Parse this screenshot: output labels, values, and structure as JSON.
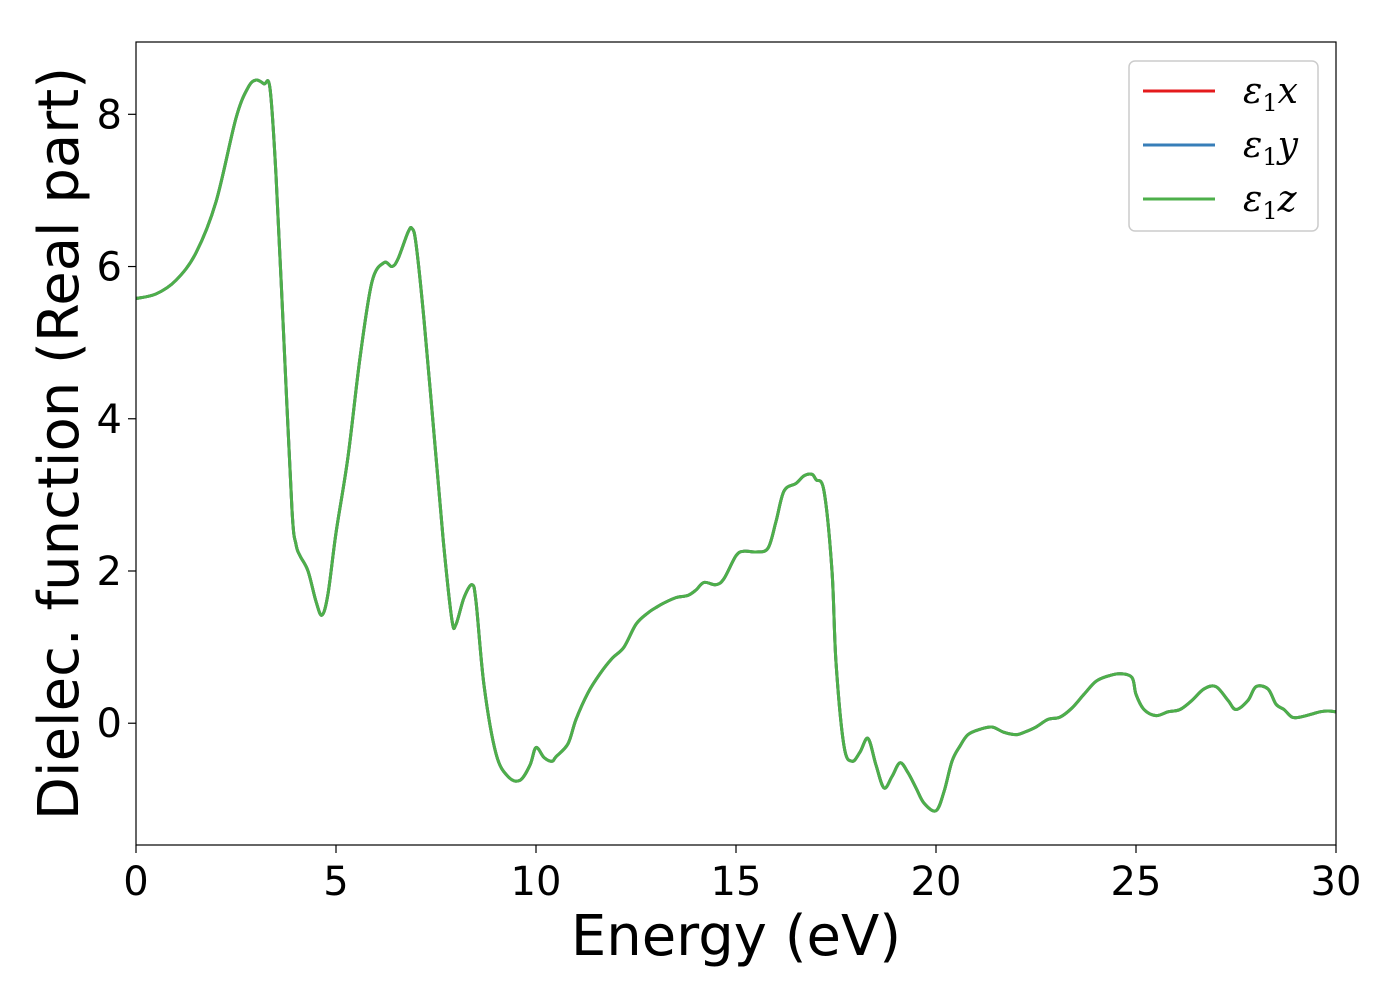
{
  "chart_data": {
    "type": "line",
    "title": "",
    "xlabel": "Energy (eV)",
    "ylabel": "Dielec. function (Real part)",
    "xlim": [
      0,
      30
    ],
    "ylim": [
      -1.6,
      8.95
    ],
    "xticks": [
      0,
      5,
      10,
      15,
      20,
      25,
      30
    ],
    "yticks": [
      0,
      2,
      4,
      6,
      8
    ],
    "grid": false,
    "legend_position": "top-right",
    "series": [
      {
        "name": "ε1x",
        "label_main": "ε",
        "label_sub": "1",
        "label_tail": "x",
        "color": "#e41a1c",
        "x": [
          0,
          0.5,
          1.0,
          1.5,
          2.0,
          2.5,
          2.8,
          3.0,
          3.2,
          3.35,
          3.5,
          3.7,
          3.9,
          4.0,
          4.1,
          4.3,
          4.5,
          4.65,
          4.8,
          5.0,
          5.3,
          5.6,
          5.9,
          6.2,
          6.4,
          6.55,
          6.8,
          6.9,
          7.0,
          7.2,
          7.5,
          7.7,
          7.9,
          8.0,
          8.2,
          8.4,
          8.5,
          8.7,
          9.0,
          9.3,
          9.6,
          9.85,
          10.0,
          10.2,
          10.4,
          10.5,
          10.8,
          11.0,
          11.3,
          11.6,
          11.9,
          12.2,
          12.5,
          12.8,
          13.0,
          13.2,
          13.5,
          13.8,
          14.0,
          14.2,
          14.5,
          14.7,
          15.0,
          15.2,
          15.5,
          15.8,
          16.0,
          16.2,
          16.5,
          16.7,
          16.9,
          17.0,
          17.2,
          17.4,
          17.5,
          17.7,
          17.9,
          18.1,
          18.3,
          18.5,
          18.7,
          18.9,
          19.1,
          19.3,
          19.5,
          19.7,
          20.0,
          20.2,
          20.4,
          20.6,
          20.8,
          21.1,
          21.4,
          21.7,
          22.0,
          22.2,
          22.5,
          22.8,
          23.1,
          23.4,
          23.7,
          24.0,
          24.3,
          24.6,
          24.9,
          25.0,
          25.2,
          25.5,
          25.8,
          26.1,
          26.4,
          26.7,
          27.0,
          27.3,
          27.5,
          27.8,
          28.0,
          28.3,
          28.5,
          28.7,
          28.9,
          29.1,
          29.4,
          29.6,
          29.8,
          30.0
        ],
        "values": [
          5.58,
          5.64,
          5.82,
          6.18,
          6.85,
          7.95,
          8.35,
          8.45,
          8.4,
          8.34,
          7.2,
          5.0,
          2.8,
          2.35,
          2.2,
          2.0,
          1.6,
          1.42,
          1.7,
          2.5,
          3.5,
          4.8,
          5.8,
          6.05,
          6.0,
          6.1,
          6.45,
          6.5,
          6.3,
          5.3,
          3.5,
          2.3,
          1.35,
          1.3,
          1.65,
          1.82,
          1.6,
          0.5,
          -0.4,
          -0.7,
          -0.75,
          -0.55,
          -0.32,
          -0.45,
          -0.5,
          -0.44,
          -0.27,
          0.05,
          0.4,
          0.65,
          0.85,
          1.0,
          1.3,
          1.45,
          1.52,
          1.58,
          1.65,
          1.68,
          1.75,
          1.85,
          1.82,
          1.9,
          2.2,
          2.26,
          2.25,
          2.3,
          2.65,
          3.05,
          3.15,
          3.25,
          3.27,
          3.2,
          3.05,
          2.0,
          0.8,
          -0.3,
          -0.5,
          -0.38,
          -0.2,
          -0.55,
          -0.85,
          -0.7,
          -0.52,
          -0.65,
          -0.85,
          -1.05,
          -1.15,
          -0.9,
          -0.5,
          -0.3,
          -0.15,
          -0.08,
          -0.05,
          -0.12,
          -0.15,
          -0.12,
          -0.05,
          0.05,
          0.08,
          0.2,
          0.38,
          0.55,
          0.62,
          0.65,
          0.6,
          0.38,
          0.18,
          0.1,
          0.15,
          0.18,
          0.3,
          0.45,
          0.48,
          0.3,
          0.18,
          0.3,
          0.48,
          0.45,
          0.25,
          0.18,
          0.08,
          0.08,
          0.12,
          0.15,
          0.16,
          0.15
        ]
      },
      {
        "name": "ε1y",
        "label_main": "ε",
        "label_sub": "1",
        "label_tail": "y",
        "color": "#377eb8",
        "same_as": "ε1x"
      },
      {
        "name": "ε1z",
        "label_main": "ε",
        "label_sub": "1",
        "label_tail": "z",
        "color": "#4daf4a",
        "same_as": "ε1x"
      }
    ]
  }
}
